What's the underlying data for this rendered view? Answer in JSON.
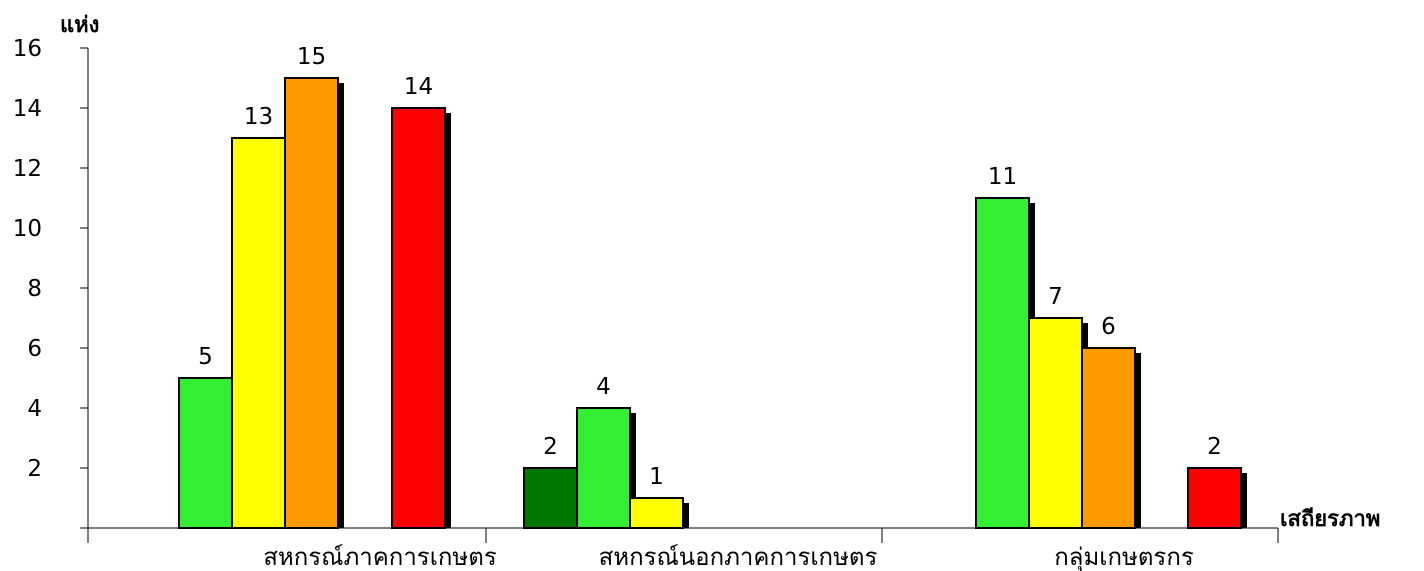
{
  "chart_data": {
    "type": "bar",
    "ylabel": "แห่ง",
    "xlabel": "เสถียรภาพ",
    "ylim": [
      0,
      16
    ],
    "yticks": [
      2,
      4,
      6,
      8,
      10,
      12,
      14,
      16
    ],
    "grid": false,
    "legend": "none",
    "categories": [
      "สหกรณ์ภาคการเกษตร",
      "สหกรณ์นอกภาคการเกษตร",
      "กลุ่มเกษตรกร"
    ],
    "groups": [
      {
        "category": "สหกรณ์ภาคการเกษตร",
        "bars": [
          {
            "value": 5,
            "color": "#33ee33"
          },
          {
            "value": 13,
            "color": "#ffff00"
          },
          {
            "value": 15,
            "color": "#ff9900"
          },
          {
            "value": 14,
            "color": "#ff0000"
          }
        ]
      },
      {
        "category": "สหกรณ์นอกภาคการเกษตร",
        "bars": [
          {
            "value": 2,
            "color": "#007700"
          },
          {
            "value": 4,
            "color": "#33ee33"
          },
          {
            "value": 1,
            "color": "#ffff00"
          }
        ]
      },
      {
        "category": "กลุ่มเกษตรกร",
        "bars": [
          {
            "value": 11,
            "color": "#33ee33"
          },
          {
            "value": 7,
            "color": "#ffff00"
          },
          {
            "value": 6,
            "color": "#ff9900"
          },
          {
            "value": 2,
            "color": "#ff0000"
          }
        ]
      }
    ]
  }
}
